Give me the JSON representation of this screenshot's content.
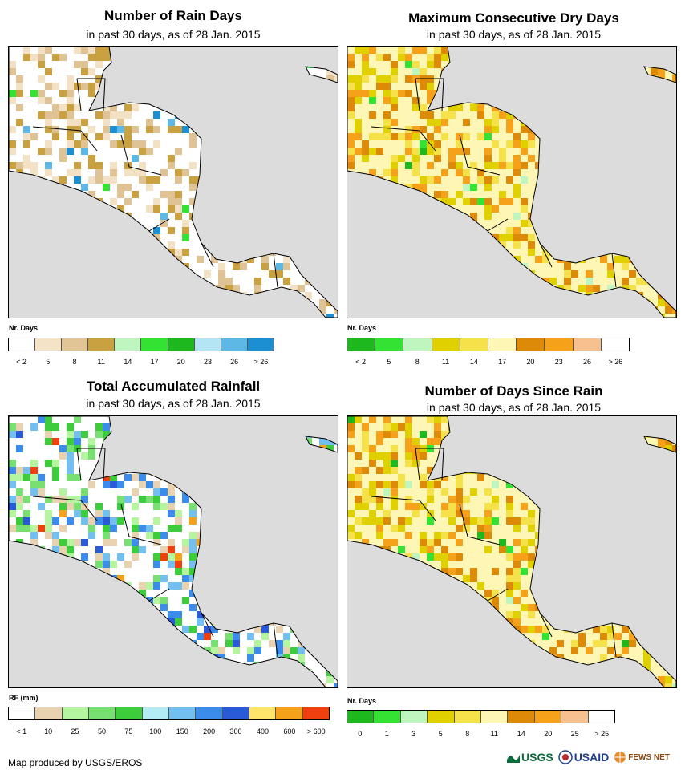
{
  "panels": [
    {
      "title": "Number of Rain Days",
      "subtitle": "in past 30 days, as of 28 Jan. 2015",
      "legend_title": "Nr. Days",
      "legend_colors": [
        "#ffffff",
        "#f5e3c8",
        "#e2c596",
        "#c9a140",
        "#bff5bf",
        "#33e233",
        "#1db81d",
        "#b3e5f5",
        "#5eb8e6",
        "#1b8fd1"
      ],
      "legend_labels": [
        "< 2",
        "5",
        "8",
        "11",
        "14",
        "17",
        "20",
        "23",
        "26",
        "> 26"
      ],
      "palette": [
        "#ffffff",
        "#f3e1c6",
        "#e0c395",
        "#c9a140"
      ],
      "accent": [
        "#33e233",
        "#5eb8e6",
        "#1b8fd1"
      ]
    },
    {
      "title": "Maximum Consecutive Dry Days",
      "subtitle": "in past 30 days, as of 28 Jan. 2015",
      "legend_title": "Nr. Days",
      "legend_colors": [
        "#1db81d",
        "#33e233",
        "#bff5bf",
        "#e0d000",
        "#f5e14a",
        "#fdf6b5",
        "#dd8a08",
        "#f5a21a",
        "#f7c08f",
        "#ffffff"
      ],
      "legend_labels": [
        "< 2",
        "5",
        "8",
        "11",
        "14",
        "17",
        "20",
        "23",
        "26",
        "> 26"
      ],
      "palette": [
        "#fdf6b5",
        "#f5e14a",
        "#e0d000",
        "#dd8a08",
        "#f5a21a"
      ],
      "accent": [
        "#33e233",
        "#bff5bf",
        "#1db81d"
      ]
    },
    {
      "title": "Total Accumulated Rainfall",
      "subtitle": "in past 30 days, as of 28 Jan. 2015",
      "legend_title": "RF (mm)",
      "legend_colors": [
        "#ffffff",
        "#e8d2b0",
        "#b5f5a0",
        "#78e070",
        "#3ccc3c",
        "#b3ecf5",
        "#73c0f0",
        "#3c8ceb",
        "#2a5ad8",
        "#fde46a",
        "#f5a21a",
        "#f04010"
      ],
      "legend_labels": [
        "< 1",
        "10",
        "25",
        "50",
        "75",
        "100",
        "150",
        "200",
        "300",
        "400",
        "600",
        "> 600"
      ],
      "palette": [
        "#ffffff",
        "#e8d2b0",
        "#b5f5a0",
        "#78e070",
        "#3ccc3c",
        "#73c0f0",
        "#3c8ceb"
      ],
      "accent": [
        "#2a5ad8",
        "#f04010",
        "#f5a21a"
      ]
    },
    {
      "title": "Number of Days Since Rain",
      "subtitle": "in past 30 days, as of 28 Jan. 2015",
      "legend_title": "Nr. Days",
      "legend_colors": [
        "#1db81d",
        "#33e233",
        "#bff5bf",
        "#e0d000",
        "#f5e14a",
        "#fdf6b5",
        "#dd8a08",
        "#f5a21a",
        "#f7c08f",
        "#ffffff"
      ],
      "legend_labels": [
        "0",
        "1",
        "3",
        "5",
        "8",
        "11",
        "14",
        "20",
        "25",
        "> 25"
      ],
      "palette": [
        "#fdf6b5",
        "#f5e14a",
        "#e0d000",
        "#f5a21a",
        "#dd8a08"
      ],
      "accent": [
        "#1db81d",
        "#33e233",
        "#bff5bf"
      ]
    }
  ],
  "footer": {
    "text": "Map produced by USGS/EROS"
  },
  "logos": {
    "usgs": "USGS",
    "usaid": "USAID",
    "fews": "FEWS NET"
  }
}
